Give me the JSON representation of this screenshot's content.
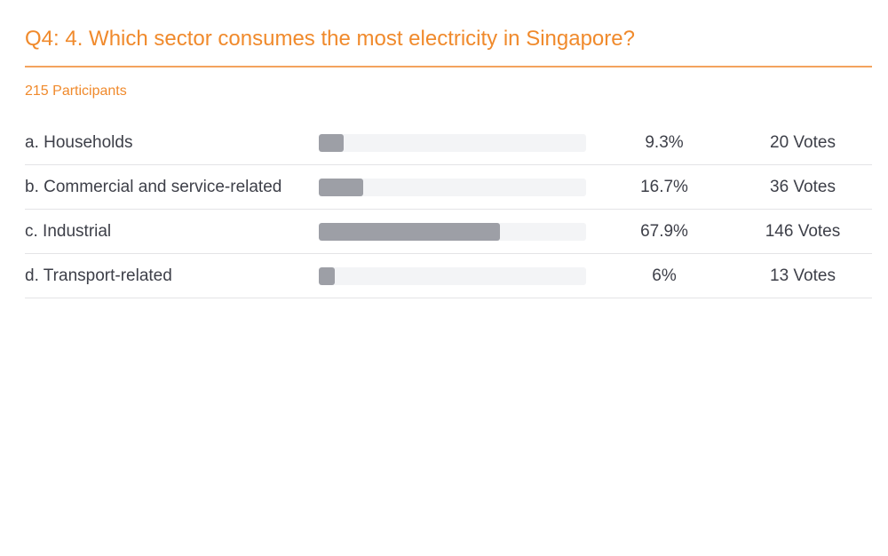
{
  "question": {
    "title": "Q4: 4. Which sector consumes the most electricity in Singapore?",
    "participants": "215 Participants"
  },
  "colors": {
    "accent": "#f08a2c",
    "bar_fill": "#9d9fa6",
    "bar_track": "#f3f4f6",
    "text": "#3d3f48"
  },
  "chart_data": {
    "type": "bar",
    "title": "Q4: 4. Which sector consumes the most electricity in Singapore?",
    "subtitle": "215 Participants",
    "categories": [
      "a. Households",
      "b. Commercial and service-related",
      "c. Industrial",
      "d. Transport-related"
    ],
    "values": [
      9.3,
      16.7,
      67.9,
      6
    ],
    "percent_labels": [
      "9.3%",
      "16.7%",
      "67.9%",
      "6%"
    ],
    "vote_labels": [
      "20 Votes",
      "36 Votes",
      "146 Votes",
      "13 Votes"
    ],
    "ylim": [
      0,
      100
    ],
    "xlabel": "",
    "ylabel": ""
  }
}
